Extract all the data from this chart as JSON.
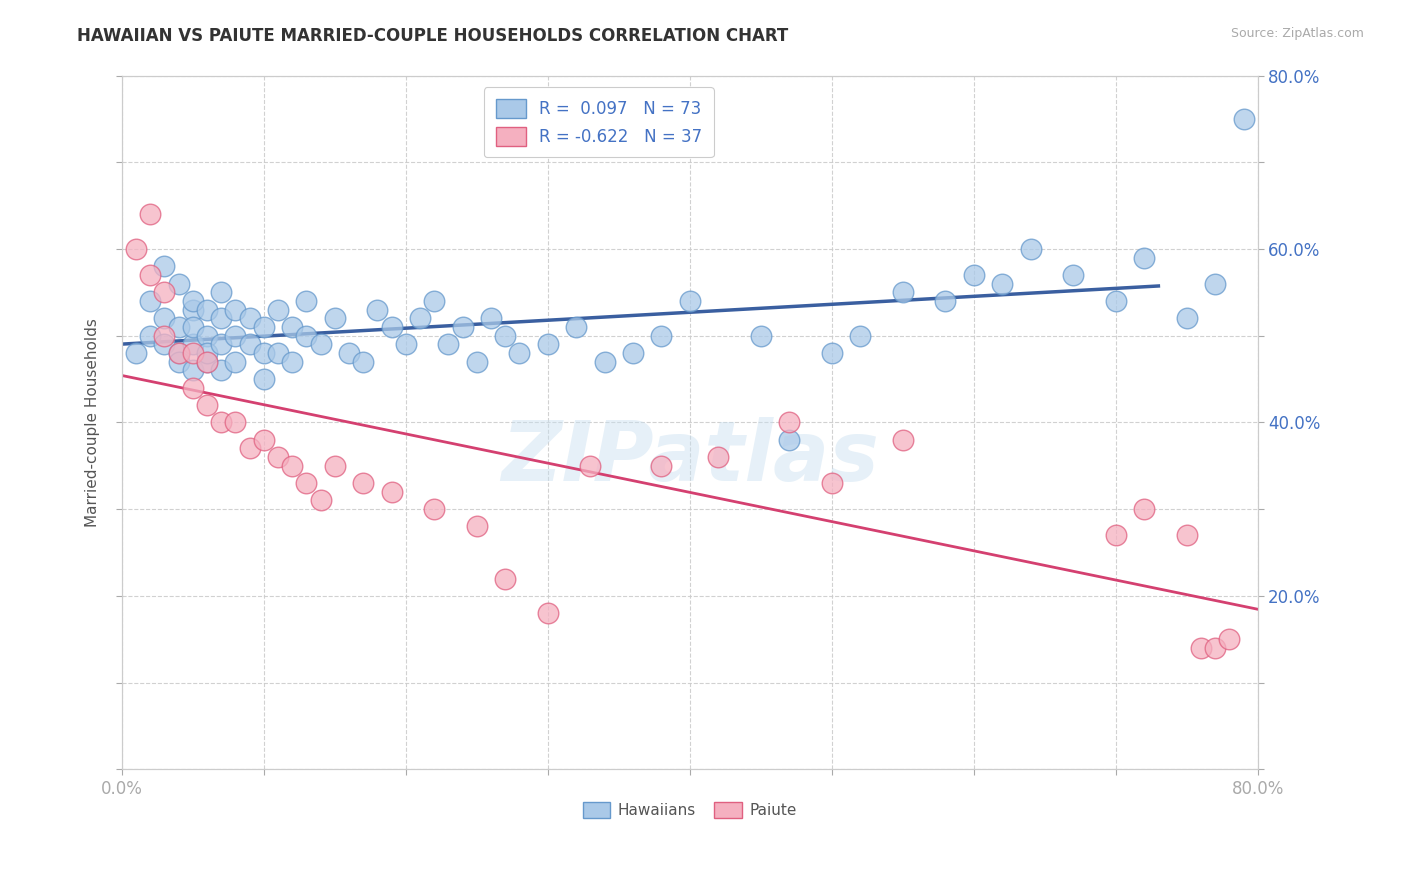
{
  "title": "HAWAIIAN VS PAIUTE MARRIED-COUPLE HOUSEHOLDS CORRELATION CHART",
  "source_text": "Source: ZipAtlas.com",
  "ylabel": "Married-couple Households",
  "xlim": [
    0.0,
    0.8
  ],
  "ylim": [
    0.0,
    0.8
  ],
  "hawaiian_color": "#aac9e8",
  "hawaiian_edge_color": "#6699cc",
  "paiute_color": "#f5b0c0",
  "paiute_edge_color": "#e06080",
  "hawaiian_line_color": "#3a5fa0",
  "paiute_line_color": "#d44070",
  "R_hawaiian": 0.097,
  "N_hawaiian": 73,
  "R_paiute": -0.622,
  "N_paiute": 37,
  "watermark": "ZIPatlas",
  "background_color": "#ffffff",
  "hawaiian_x": [
    0.01,
    0.02,
    0.02,
    0.03,
    0.03,
    0.03,
    0.04,
    0.04,
    0.04,
    0.04,
    0.05,
    0.05,
    0.05,
    0.05,
    0.05,
    0.06,
    0.06,
    0.06,
    0.06,
    0.07,
    0.07,
    0.07,
    0.07,
    0.08,
    0.08,
    0.08,
    0.09,
    0.09,
    0.1,
    0.1,
    0.1,
    0.11,
    0.11,
    0.12,
    0.12,
    0.13,
    0.13,
    0.14,
    0.15,
    0.16,
    0.17,
    0.18,
    0.19,
    0.2,
    0.21,
    0.22,
    0.23,
    0.24,
    0.25,
    0.26,
    0.27,
    0.28,
    0.3,
    0.32,
    0.34,
    0.36,
    0.38,
    0.4,
    0.45,
    0.47,
    0.5,
    0.52,
    0.55,
    0.58,
    0.6,
    0.62,
    0.64,
    0.67,
    0.7,
    0.72,
    0.75,
    0.77,
    0.79
  ],
  "hawaiian_y": [
    0.48,
    0.54,
    0.5,
    0.58,
    0.52,
    0.49,
    0.56,
    0.51,
    0.48,
    0.47,
    0.53,
    0.49,
    0.46,
    0.54,
    0.51,
    0.5,
    0.47,
    0.53,
    0.48,
    0.52,
    0.49,
    0.46,
    0.55,
    0.5,
    0.47,
    0.53,
    0.49,
    0.52,
    0.51,
    0.48,
    0.45,
    0.53,
    0.48,
    0.51,
    0.47,
    0.5,
    0.54,
    0.49,
    0.52,
    0.48,
    0.47,
    0.53,
    0.51,
    0.49,
    0.52,
    0.54,
    0.49,
    0.51,
    0.47,
    0.52,
    0.5,
    0.48,
    0.49,
    0.51,
    0.47,
    0.48,
    0.5,
    0.54,
    0.5,
    0.38,
    0.48,
    0.5,
    0.55,
    0.54,
    0.57,
    0.56,
    0.6,
    0.57,
    0.54,
    0.59,
    0.52,
    0.56,
    0.75
  ],
  "paiute_x": [
    0.01,
    0.02,
    0.02,
    0.03,
    0.03,
    0.04,
    0.05,
    0.05,
    0.06,
    0.06,
    0.07,
    0.08,
    0.09,
    0.1,
    0.11,
    0.12,
    0.13,
    0.14,
    0.15,
    0.17,
    0.19,
    0.22,
    0.25,
    0.27,
    0.3,
    0.33,
    0.38,
    0.42,
    0.47,
    0.5,
    0.55,
    0.7,
    0.72,
    0.75,
    0.76,
    0.77,
    0.78
  ],
  "paiute_y": [
    0.6,
    0.64,
    0.57,
    0.55,
    0.5,
    0.48,
    0.48,
    0.44,
    0.47,
    0.42,
    0.4,
    0.4,
    0.37,
    0.38,
    0.36,
    0.35,
    0.33,
    0.31,
    0.35,
    0.33,
    0.32,
    0.3,
    0.28,
    0.22,
    0.18,
    0.35,
    0.35,
    0.36,
    0.4,
    0.33,
    0.38,
    0.27,
    0.3,
    0.27,
    0.14,
    0.14,
    0.15
  ],
  "legend_label_h": "R =  0.097   N = 73",
  "legend_label_p": "R = -0.622   N = 37"
}
